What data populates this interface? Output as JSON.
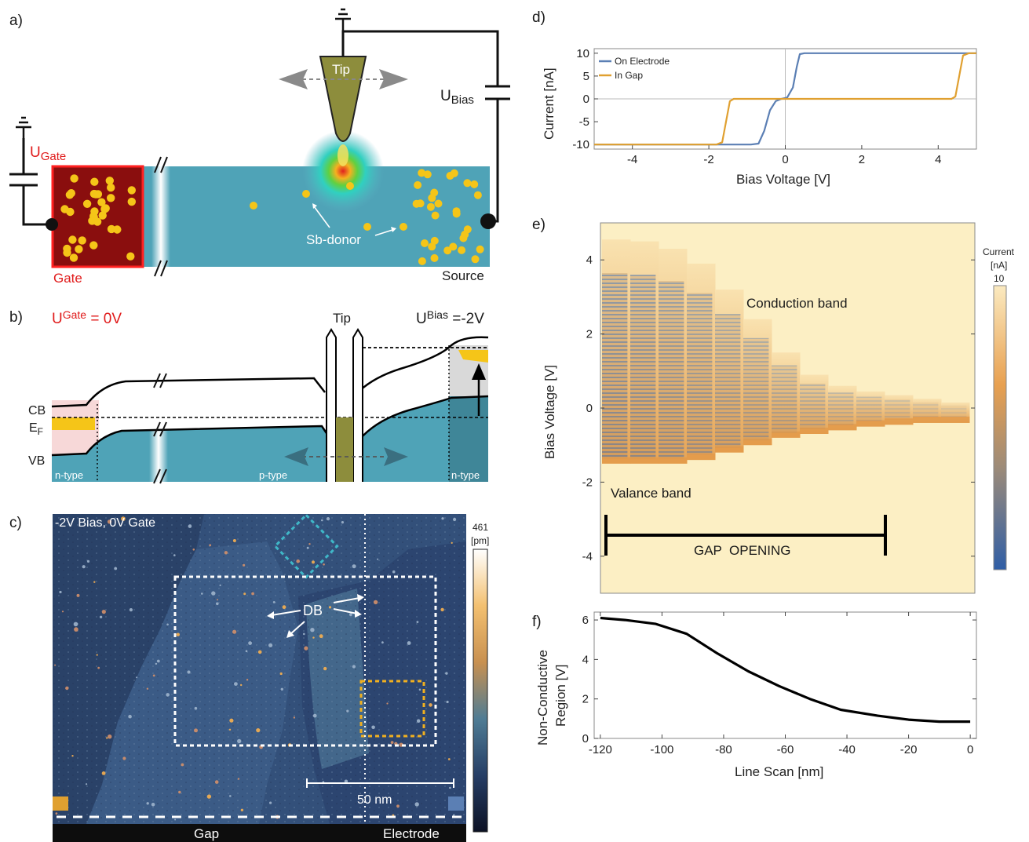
{
  "panel_labels": [
    "a)",
    "b)",
    "c)",
    "d)",
    "e)",
    "f)"
  ],
  "panel_a": {
    "tip_label": "Tip",
    "u_bias_main": "U",
    "u_bias_sub": "Bias",
    "u_gate_main": "U",
    "u_gate_sub": "Gate",
    "gate_label": "Gate",
    "source_label": "Source",
    "donor_label": "Sb-donor"
  },
  "panel_b": {
    "u_gate_main": "U",
    "u_gate_sub": "Gate",
    "u_gate_value": " = 0V",
    "u_bias_main": "U",
    "u_bias_sub": "Bias",
    "u_bias_value": " =-2V",
    "tip_label": "Tip",
    "cb": "CB",
    "ef_main": "E",
    "ef_sub": "F",
    "vb": "VB",
    "left_type": "n-type",
    "mid_type": "p-type",
    "right_type": "n-type"
  },
  "panel_c": {
    "header": "-2V Bias, 0V Gate",
    "db_label": "DB",
    "scale_label": "50 nm",
    "gap_label": "Gap",
    "electrode_label": "Electrode",
    "colorbar_max": "461",
    "colorbar_unit": "[pm]"
  },
  "panel_d": {
    "chart_data": {
      "type": "line",
      "xlabel": "Bias Voltage [V]",
      "ylabel": "Current [nA]",
      "xlim": [
        -5,
        5
      ],
      "ylim": [
        -11,
        11
      ],
      "xticks": [
        -4,
        -2,
        0,
        2,
        4
      ],
      "yticks": [
        -10,
        -5,
        0,
        5,
        10
      ],
      "legend_position": "top-left",
      "series": [
        {
          "name": "On Electrode",
          "color": "#5b7fb4",
          "x": [
            -5,
            -0.9,
            -0.7,
            -0.55,
            -0.4,
            -0.25,
            -0.1,
            0.05,
            0.2,
            0.3,
            0.38,
            0.5,
            5
          ],
          "y": [
            -10,
            -10,
            -9.8,
            -7,
            -2.5,
            -0.5,
            0,
            0.3,
            2.5,
            7,
            9.8,
            10,
            10
          ]
        },
        {
          "name": "In Gap",
          "color": "#e0a030",
          "x": [
            -5,
            -1.8,
            -1.65,
            -1.55,
            -1.45,
            -1.35,
            4.35,
            4.45,
            4.55,
            4.65,
            4.8,
            5
          ],
          "y": [
            -10,
            -10,
            -9.5,
            -5,
            -0.5,
            0,
            0,
            0.5,
            5,
            9.5,
            10,
            10
          ]
        }
      ]
    }
  },
  "panel_e": {
    "chart_data": {
      "type": "heatmap",
      "ylabel": "Bias Voltage [V]",
      "ylim": [
        -5,
        5
      ],
      "yticks": [
        -4,
        -2,
        0,
        2,
        4
      ],
      "annotations": [
        "Conduction band",
        "Valance band",
        "GAP  OPENING"
      ],
      "colorbar_title": "Current",
      "colorbar_unit": "[nA]",
      "colorbar_max": "10",
      "columns_line_scan_nm": [
        -120,
        -110,
        -100,
        -90,
        -80,
        -70,
        -60,
        -50,
        -40,
        -30,
        -20,
        -10,
        0
      ],
      "gap_top_v": [
        4.55,
        4.5,
        4.3,
        3.9,
        3.2,
        2.4,
        1.5,
        0.9,
        0.6,
        0.45,
        0.35,
        0.25,
        0.15
      ],
      "gap_bottom_v": [
        -1.5,
        -1.5,
        -1.5,
        -1.4,
        -1.2,
        -1.0,
        -0.8,
        -0.7,
        -0.6,
        -0.5,
        -0.45,
        -0.4,
        -0.4
      ]
    }
  },
  "panel_f": {
    "chart_data": {
      "type": "line",
      "xlabel": "Line Scan [nm]",
      "ylabel_line1": "Non-Conductive",
      "ylabel_line2": "Region [V]",
      "xlim": [
        -122,
        2
      ],
      "ylim": [
        0,
        6.4
      ],
      "xticks": [
        -120,
        -100,
        -80,
        -60,
        -40,
        -20,
        0
      ],
      "yticks": [
        0,
        2,
        4,
        6
      ],
      "series": [
        {
          "color": "#000000",
          "x": [
            -120,
            -112,
            -102,
            -92,
            -82,
            -72,
            -62,
            -52,
            -42,
            -30,
            -20,
            -10,
            0
          ],
          "y": [
            6.1,
            6.0,
            5.8,
            5.3,
            4.3,
            3.4,
            2.65,
            2.0,
            1.45,
            1.15,
            0.95,
            0.85,
            0.85
          ]
        }
      ]
    }
  }
}
